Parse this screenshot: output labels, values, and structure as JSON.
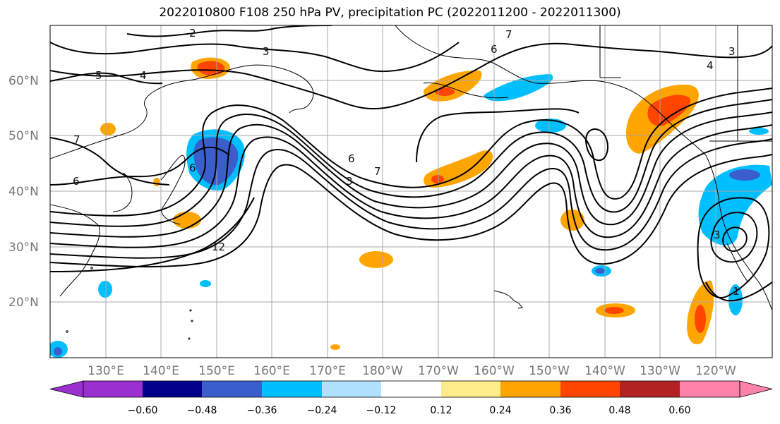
{
  "title": "2022010800 F108 250 hPa PV, precipitation PC (2022011200 - 2022011300)",
  "lat_labels": [
    "60°N",
    "50°N",
    "40°N",
    "30°N",
    "20°N"
  ],
  "lon_labels": [
    "130°E",
    "140°E",
    "150°E",
    "160°E",
    "170°E",
    "180°W",
    "170°W",
    "160°W",
    "150°W",
    "140°W",
    "130°W",
    "120°W"
  ],
  "contour_labels": [
    "2",
    "3",
    "4",
    "5",
    "6",
    "7",
    "6",
    "3",
    "7",
    "6",
    "6",
    "7",
    "12",
    "3",
    "4",
    "3",
    "1"
  ],
  "colorbar": {
    "colors": [
      "#9b30d0",
      "#00008b",
      "#3a5fcd",
      "#00bfff",
      "#b0e2ff",
      "#ffffff",
      "#ffec8b",
      "#ffa500",
      "#ff4500",
      "#b22222",
      "#ff82ab"
    ],
    "tick_labels": [
      "−0.60",
      "−0.48",
      "−0.36",
      "−0.24",
      "−0.12",
      "0.12",
      "0.24",
      "0.36",
      "0.48",
      "0.60"
    ]
  }
}
